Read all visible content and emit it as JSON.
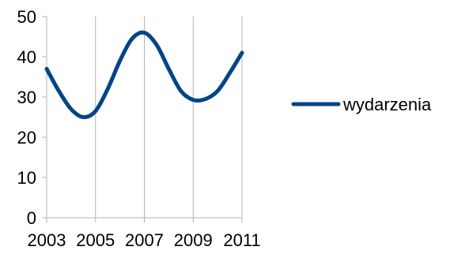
{
  "chart_data": {
    "type": "line",
    "x": [
      2003,
      2005,
      2007,
      2009,
      2011
    ],
    "series": [
      {
        "name": "wydarzenia",
        "color": "#004586",
        "points": [
          [
            2003.0,
            37.0
          ],
          [
            2003.5,
            31.5
          ],
          [
            2004.0,
            27.0
          ],
          [
            2004.5,
            25.0
          ],
          [
            2005.0,
            26.5
          ],
          [
            2005.5,
            32.0
          ],
          [
            2006.0,
            39.0
          ],
          [
            2006.5,
            44.5
          ],
          [
            2007.0,
            46.0
          ],
          [
            2007.5,
            43.0
          ],
          [
            2008.0,
            37.0
          ],
          [
            2008.5,
            31.5
          ],
          [
            2009.0,
            29.3
          ],
          [
            2009.5,
            29.5
          ],
          [
            2010.0,
            31.5
          ],
          [
            2010.5,
            36.0
          ],
          [
            2011.0,
            41.0
          ]
        ]
      }
    ],
    "xticks": [
      "2003",
      "2005",
      "2007",
      "2009",
      "2011"
    ],
    "yticks": [
      "0",
      "10",
      "20",
      "30",
      "40",
      "50"
    ],
    "xlim": [
      2003,
      2011
    ],
    "ylim": [
      0,
      50
    ],
    "grid": "vertical",
    "legend": "right",
    "title": "",
    "xlabel": "",
    "ylabel": ""
  }
}
